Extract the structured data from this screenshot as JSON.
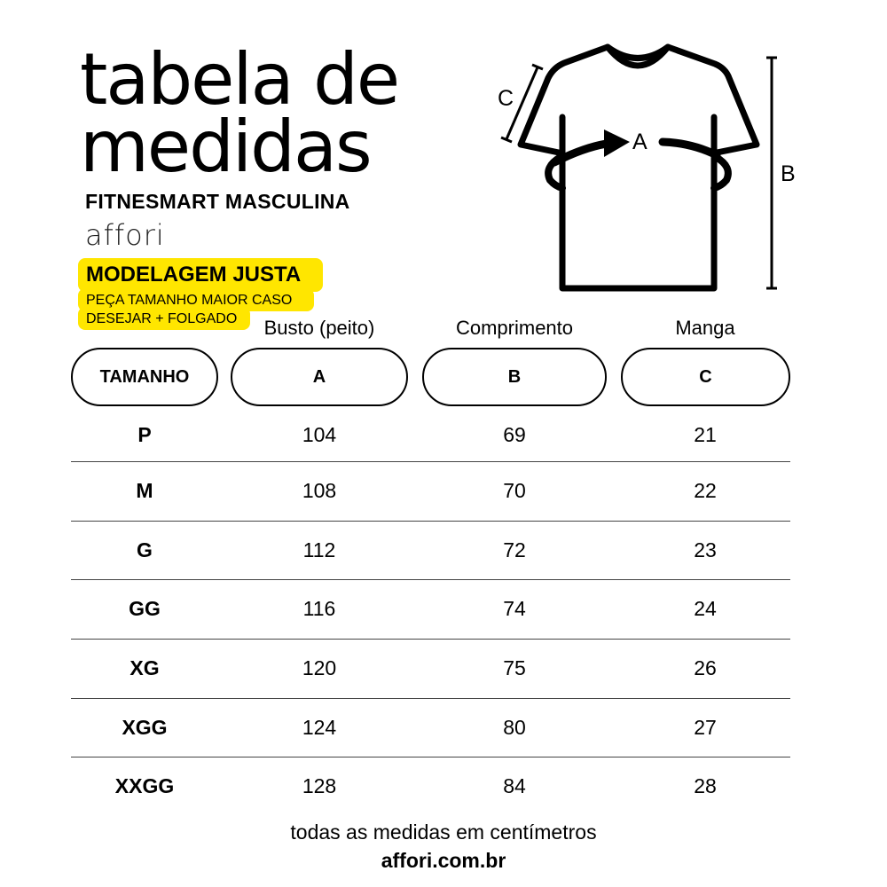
{
  "title_line1": "tabela de",
  "title_line2": "medidas",
  "subtitle": "FITNESMART MASCULINA",
  "brand": "affori",
  "fit_badge": {
    "title": "MODELAGEM JUSTA",
    "line1": "PEÇA TAMANHO MAIOR CASO",
    "line2": "DESEJAR + FOLGADO",
    "color": "#ffe600"
  },
  "diagram": {
    "label_a": "A",
    "label_b": "B",
    "label_c": "C"
  },
  "table": {
    "column_titles": [
      "Busto (peito)",
      "Comprimento",
      "Manga"
    ],
    "headers": [
      "TAMANHO",
      "A",
      "B",
      "C"
    ],
    "rows": [
      [
        "P",
        "104",
        "69",
        "21"
      ],
      [
        "M",
        "108",
        "70",
        "22"
      ],
      [
        "G",
        "112",
        "72",
        "23"
      ],
      [
        "GG",
        "116",
        "74",
        "24"
      ],
      [
        "XG",
        "120",
        "75",
        "26"
      ],
      [
        "XGG",
        "124",
        "80",
        "27"
      ],
      [
        "XXGG",
        "128",
        "84",
        "28"
      ]
    ]
  },
  "footer": {
    "note": "todas as medidas em centímetros",
    "website": "affori.com.br"
  }
}
